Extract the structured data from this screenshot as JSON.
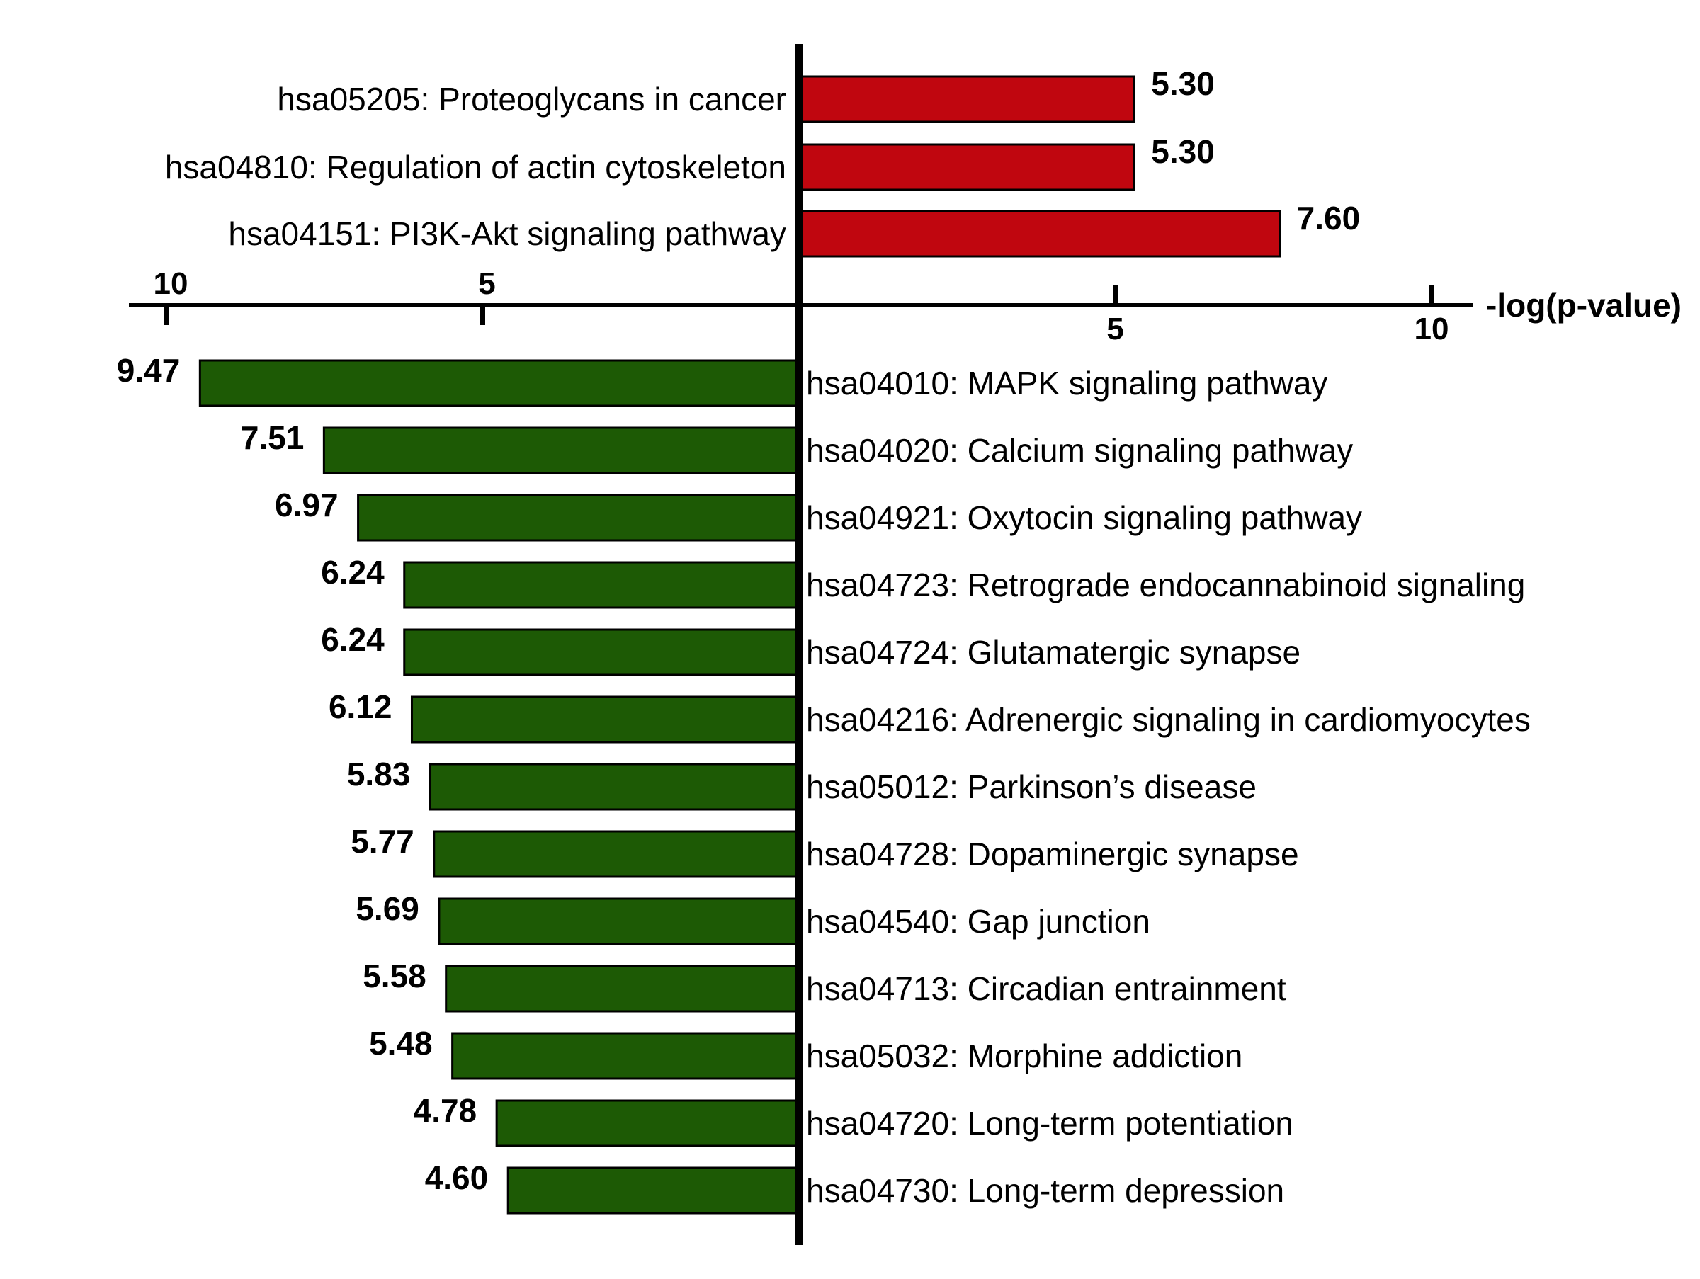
{
  "chart_data": {
    "type": "bar",
    "orientation": "horizontal-diverging",
    "xlabel": "-log(p-value)",
    "xlim": [
      0,
      10
    ],
    "ticks": [
      5,
      10
    ],
    "colors": {
      "up": "#C0060F",
      "down": "#1D5A05",
      "outline": "#000000"
    },
    "series": [
      {
        "direction": "right",
        "color": "#C0060F",
        "categories": [
          "hsa05205: Proteoglycans in cancer",
          "hsa04810: Regulation of actin cytoskeleton",
          "hsa04151: PI3K-Akt signaling pathway"
        ],
        "values": [
          5.3,
          5.3,
          7.6
        ],
        "value_labels": [
          "5.30",
          "5.30",
          "7.60"
        ]
      },
      {
        "direction": "left",
        "color": "#1D5A05",
        "categories": [
          "hsa04010: MAPK signaling pathway",
          "hsa04020: Calcium signaling pathway",
          "hsa04921: Oxytocin signaling pathway",
          "hsa04723: Retrograde endocannabinoid signaling",
          "hsa04724: Glutamatergic synapse",
          "hsa04216: Adrenergic signaling in cardiomyocytes",
          "hsa05012: Parkinson’s disease",
          "hsa04728: Dopaminergic synapse",
          "hsa04540: Gap junction",
          "hsa04713: Circadian entrainment",
          "hsa05032: Morphine addiction",
          "hsa04720: Long-term potentiation",
          "hsa04730: Long-term depression"
        ],
        "values": [
          9.47,
          7.51,
          6.97,
          6.24,
          6.24,
          6.12,
          5.83,
          5.77,
          5.69,
          5.58,
          5.48,
          4.78,
          4.6
        ],
        "value_labels": [
          "9.47",
          "7.51",
          "6.97",
          "6.24",
          "6.24",
          "6.12",
          "5.83",
          "5.77",
          "5.69",
          "5.58",
          "5.48",
          "4.78",
          "4.60"
        ]
      }
    ]
  }
}
